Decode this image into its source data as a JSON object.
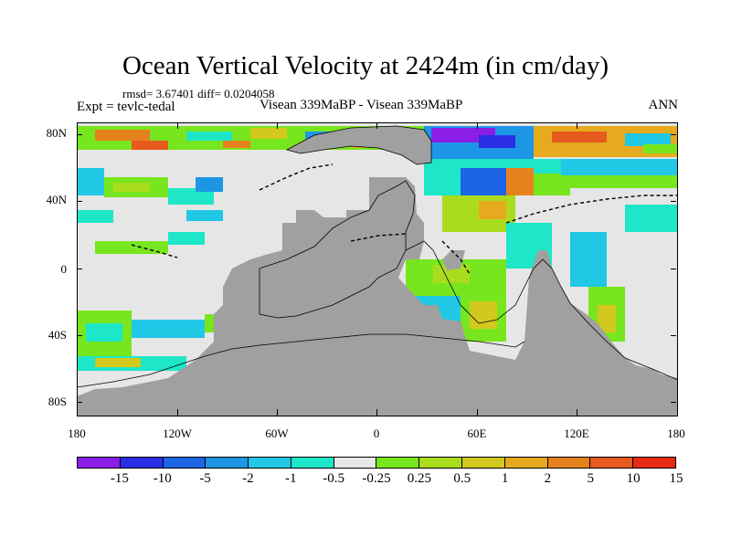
{
  "title": "Ocean Vertical Velocity at 2424m (in cm/day)",
  "stats_line": "rmsd= 3.67401 diff= 0.0204058",
  "left_string": "Expt = tevlc-tedal",
  "center_string": "Visean 339MaBP - Visean 339MaBP",
  "right_string": "ANN",
  "y_axis_labels": [
    "80N",
    "40N",
    "0",
    "40S",
    "80S"
  ],
  "x_axis_labels": [
    "180",
    "120W",
    "60W",
    "0",
    "60E",
    "120E",
    "180"
  ],
  "colorbar": {
    "colors": [
      "#8a1ee6",
      "#2a2ee6",
      "#1e64e6",
      "#1e96e6",
      "#20c8e6",
      "#1ee6c8",
      "#e6e6e6",
      "#78e61e",
      "#aadc1e",
      "#d2c81e",
      "#e6aa1e",
      "#e6821e",
      "#e65a1e",
      "#e62a14"
    ],
    "labels": [
      "-15",
      "-10",
      "-5",
      "-2",
      "-1",
      "-0.5",
      "-0.25",
      "0.25",
      "0.5",
      "1",
      "2",
      "5",
      "10",
      "15"
    ]
  },
  "map_colors": {
    "land": "#a0a0a0",
    "no_data": "#e6e6e6"
  }
}
